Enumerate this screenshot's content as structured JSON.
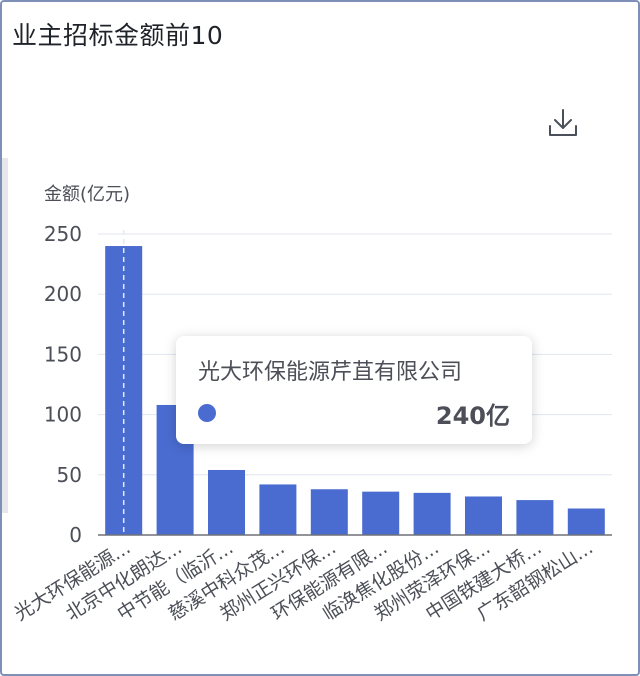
{
  "header": {
    "title": "业主招标金额前10"
  },
  "toolbar": {
    "download_icon": "download-icon"
  },
  "tooltip": {
    "name": "光大环保能源芹苴有限公司",
    "value": "240亿",
    "color": "#4a6cd0"
  },
  "chart_data": {
    "type": "bar",
    "title": "业主招标金额前10",
    "ylabel": "金额(亿元)",
    "xlabel": "",
    "categories": [
      "光大环保能源...",
      "北京中化朗达...",
      "中节能（临沂...",
      "慈溪中科众茂...",
      "郑州正兴环保...",
      "环保能源有限...",
      "临涣焦化股份...",
      "郑州荥泽环保...",
      "中国铁建大桥...",
      "广东韶钢松山..."
    ],
    "values": [
      240,
      108,
      54,
      42,
      38,
      36,
      35,
      32,
      29,
      22
    ],
    "ylim": [
      0,
      250
    ],
    "yticks": [
      0,
      50,
      100,
      150,
      200,
      250
    ],
    "grid": true,
    "bar_color": "#4a6cd0",
    "highlight_index": 0
  }
}
